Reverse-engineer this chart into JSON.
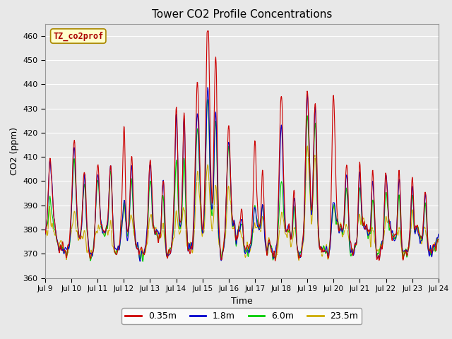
{
  "title": "Tower CO2 Profile Concentrations",
  "xlabel": "Time",
  "ylabel": "CO2 (ppm)",
  "ylim": [
    360,
    465
  ],
  "yticks": [
    360,
    370,
    380,
    390,
    400,
    410,
    420,
    430,
    440,
    450,
    460
  ],
  "x_tick_labels": [
    "Jul 9",
    "Jul 10",
    "Jul 11",
    "Jul 12",
    "Jul 13",
    "Jul 14",
    "Jul 15",
    "Jul 16",
    "Jul 17",
    "Jul 18",
    "Jul 19",
    "Jul 20",
    "Jul 21",
    "Jul 22",
    "Jul 23",
    "Jul 24"
  ],
  "colors": {
    "0.35m": "#cc0000",
    "1.8m": "#0000cc",
    "6.0m": "#00cc00",
    "23.5m": "#ccaa00"
  },
  "legend_labels": [
    "0.35m",
    "1.8m",
    "6.0m",
    "23.5m"
  ],
  "tag_label": "TZ_co2prof",
  "tag_bg": "#ffffcc",
  "tag_text_color": "#aa0000",
  "tag_edge_color": "#aa8800",
  "axes_bg": "#e8e8e8",
  "grid_color": "#ffffff",
  "fig_bg": "#e8e8e8",
  "line_width": 0.8,
  "n_points": 1080
}
